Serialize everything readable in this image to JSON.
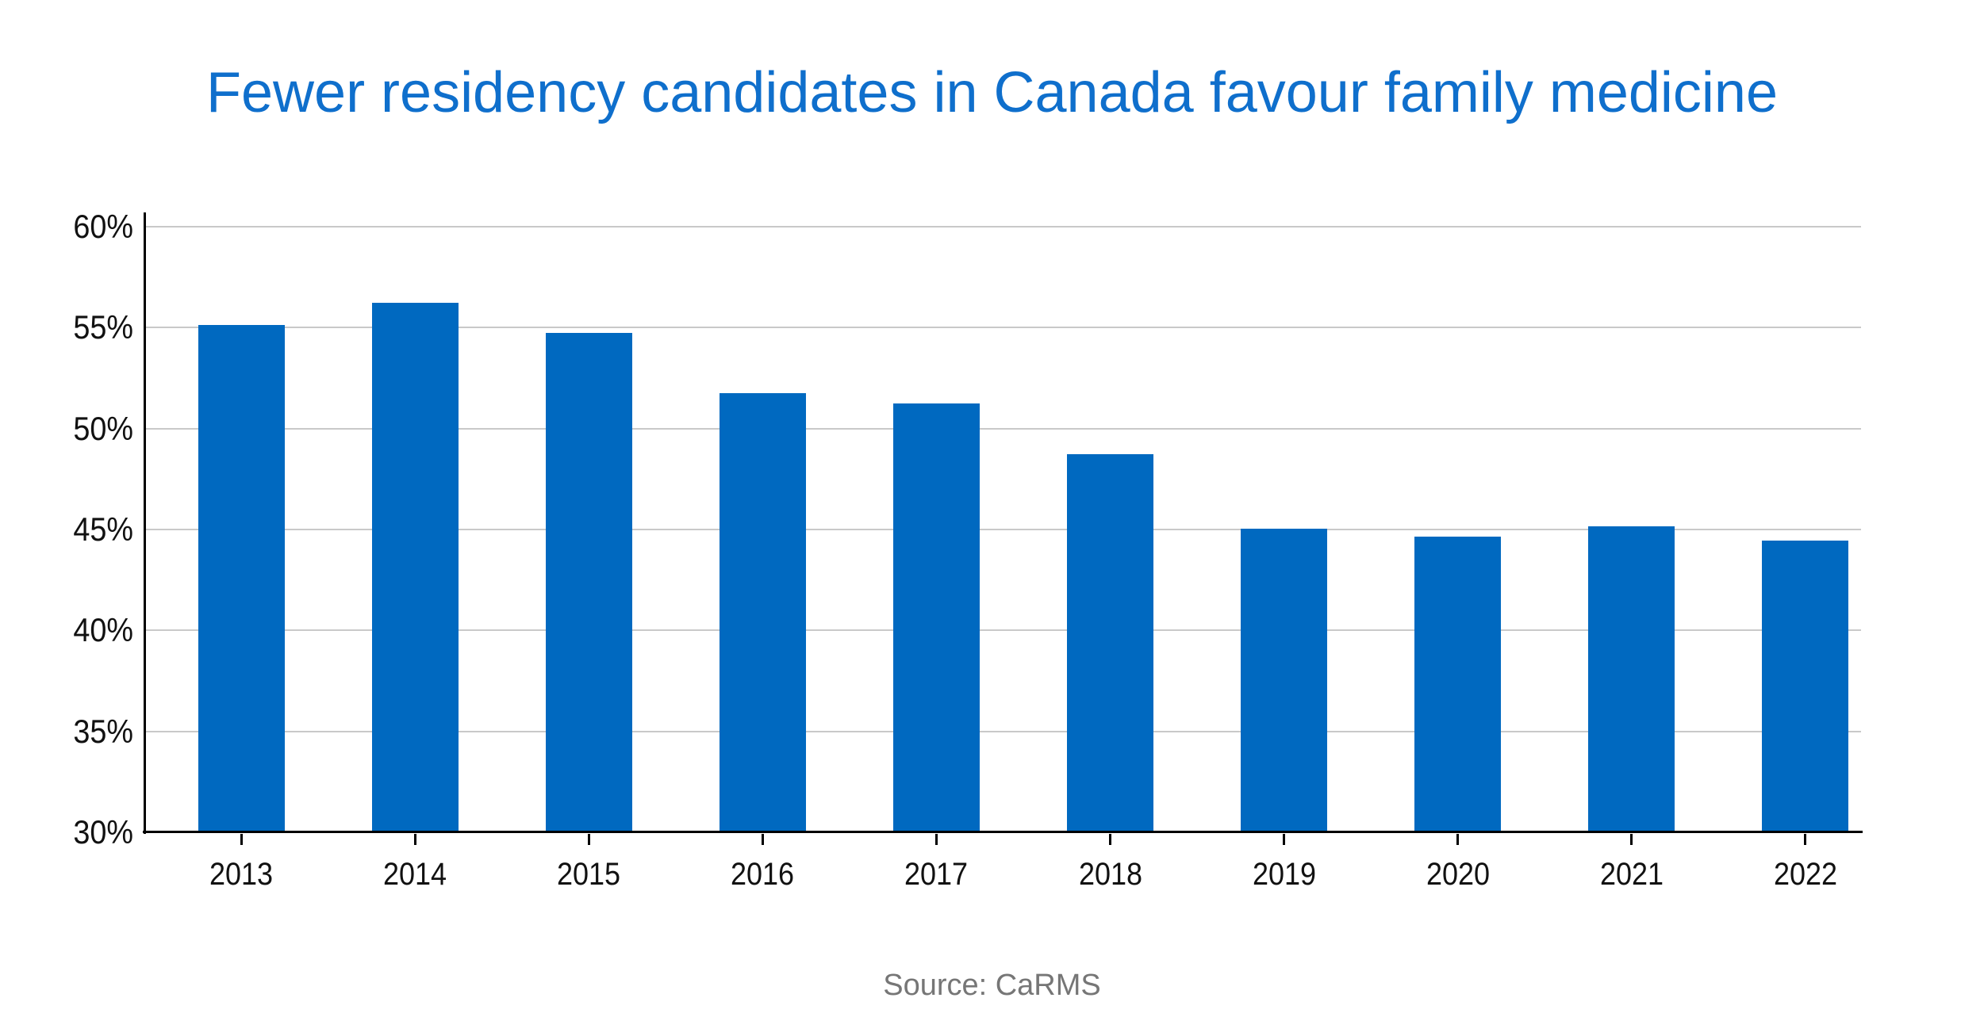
{
  "title": {
    "text": "Fewer residency candidates in Canada favour family medicine"
  },
  "source": {
    "text": "Source: CaRMS"
  },
  "colors": {
    "title": "#0f6fcc",
    "bar": "#0069c0",
    "gridline": "#c9c9c9",
    "axis": "#000000",
    "tick_label": "#111111",
    "source_text": "#767676"
  },
  "chart_data": {
    "type": "bar",
    "title": "Fewer residency candidates in Canada favour family medicine",
    "categories": [
      "2013",
      "2014",
      "2015",
      "2016",
      "2017",
      "2018",
      "2019",
      "2020",
      "2021",
      "2022"
    ],
    "values": [
      55.1,
      56.2,
      54.7,
      51.7,
      51.2,
      48.7,
      45.0,
      44.6,
      45.1,
      44.4
    ],
    "unit": "%",
    "xlabel": "",
    "ylabel": "",
    "ylim": [
      30,
      60
    ],
    "ytick_step": 5,
    "ytick_labels": [
      "30%",
      "35%",
      "40%",
      "45%",
      "50%",
      "55%",
      "60%"
    ],
    "grid": true,
    "legend": null,
    "annotation": "Source: CaRMS"
  }
}
